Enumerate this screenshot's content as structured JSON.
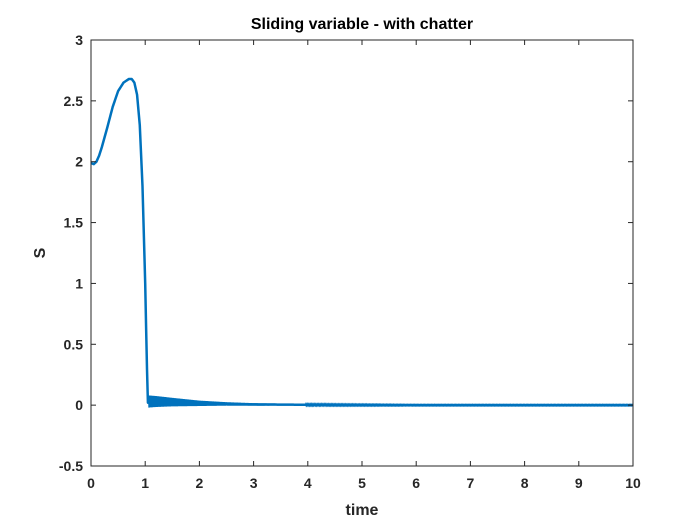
{
  "chart_data": {
    "type": "line",
    "title": "Sliding variable - with chatter",
    "xlabel": "time",
    "ylabel": "S",
    "xlim": [
      0,
      10
    ],
    "ylim": [
      -0.5,
      3
    ],
    "xticks": [
      "0",
      "1",
      "2",
      "3",
      "4",
      "5",
      "6",
      "7",
      "8",
      "9",
      "10"
    ],
    "yticks": [
      "-0.5",
      "0",
      "0.5",
      "1",
      "1.5",
      "2",
      "2.5",
      "3"
    ],
    "grid": false,
    "legend": "none",
    "series": [
      {
        "color": "#0072BD",
        "x": [
          0,
          0.05,
          0.1,
          0.15,
          0.2,
          0.3,
          0.4,
          0.5,
          0.6,
          0.7,
          0.75,
          0.8,
          0.85,
          0.9,
          0.95,
          1.0,
          1.03,
          1.05,
          1.06,
          1.2,
          1.5,
          2.0,
          2.5,
          3.0,
          4.0,
          5.0,
          6.0,
          7.0,
          8.0,
          9.0,
          10.0
        ],
        "y": [
          1.99,
          1.98,
          2.0,
          2.05,
          2.12,
          2.28,
          2.45,
          2.58,
          2.65,
          2.68,
          2.68,
          2.65,
          2.55,
          2.3,
          1.8,
          1.0,
          0.35,
          0.02,
          0.03,
          0.03,
          0.025,
          0.015,
          0.01,
          0.006,
          0.003,
          0.001,
          0.0,
          0.0,
          0.0,
          0.0,
          0.0
        ],
        "chatter_amplitude": [
          0,
          0,
          0,
          0,
          0,
          0,
          0,
          0,
          0,
          0,
          0,
          0,
          0,
          0,
          0,
          0,
          0,
          0,
          0.05,
          0.045,
          0.035,
          0.022,
          0.014,
          0.01,
          0.006,
          0.005,
          0.004,
          0.004,
          0.004,
          0.004,
          0.004
        ]
      }
    ]
  }
}
